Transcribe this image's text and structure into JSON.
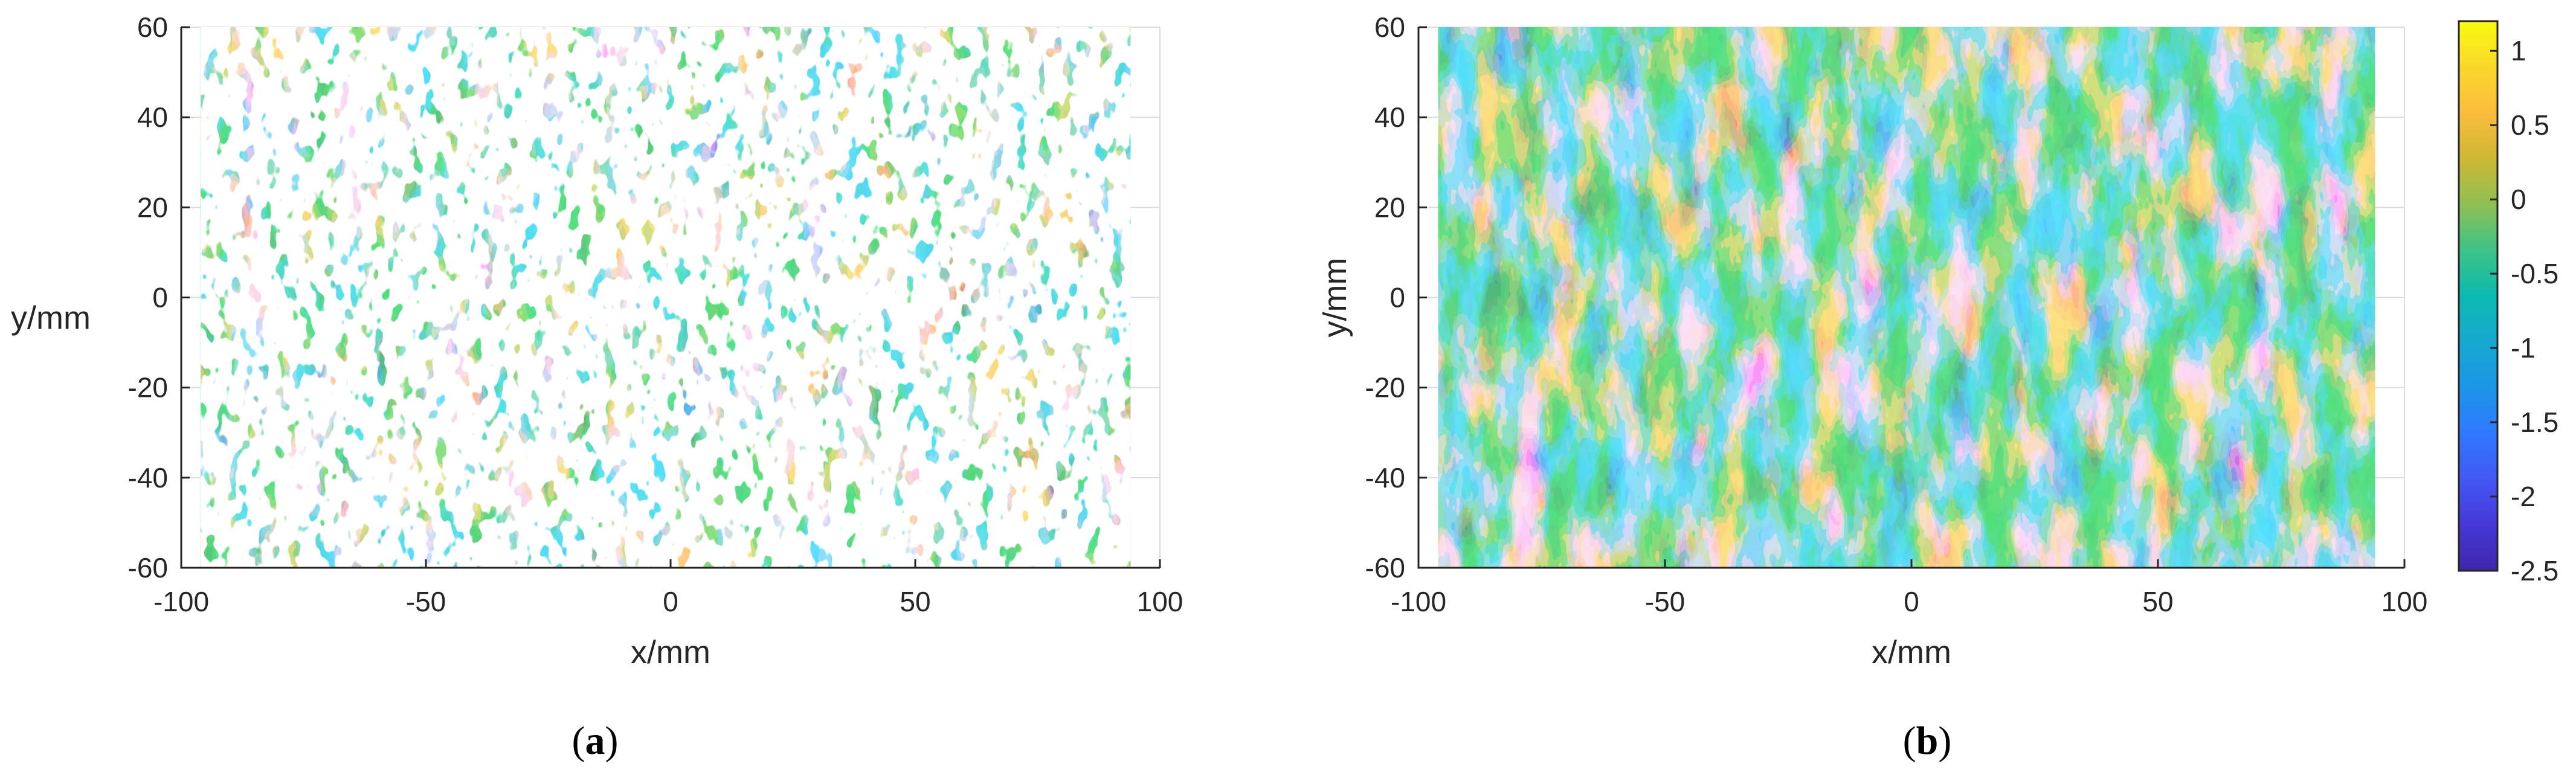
{
  "chart_data": [
    {
      "type": "heatmap",
      "panel_label": "a",
      "title": "",
      "xlabel": "x/mm",
      "ylabel": "y/mm",
      "xlim": [
        -100,
        100
      ],
      "ylim": [
        -60,
        60
      ],
      "x_ticks": [
        -100,
        -50,
        0,
        50,
        100
      ],
      "y_ticks": [
        60,
        40,
        20,
        0,
        -20,
        -40,
        -60
      ],
      "data_extent": {
        "x": [
          -96,
          94
        ],
        "y": [
          -60,
          60
        ]
      },
      "has_missing_data_holes": true,
      "grid": true,
      "colormap": "parula"
    },
    {
      "type": "heatmap",
      "panel_label": "b",
      "title": "",
      "xlabel": "x/mm",
      "ylabel": "y/mm",
      "xlim": [
        -100,
        100
      ],
      "ylim": [
        -60,
        60
      ],
      "x_ticks": [
        -100,
        -50,
        0,
        50,
        100
      ],
      "y_ticks": [
        60,
        40,
        20,
        0,
        -20,
        -40,
        -60
      ],
      "data_extent": {
        "x": [
          -96,
          94
        ],
        "y": [
          -60,
          60
        ]
      },
      "has_missing_data_holes": false,
      "grid": true,
      "colormap": "parula"
    }
  ],
  "colorbar": {
    "range": [
      -2.5,
      1.2
    ],
    "ticks": [
      1,
      0.5,
      0,
      -0.5,
      -1,
      -1.5,
      -2,
      -2.5
    ],
    "tick_labels": [
      "1",
      "0.5",
      "0",
      "-0.5",
      "-1",
      "-1.5",
      "-2",
      "-2.5"
    ],
    "colors": [
      "#3e26a8",
      "#4538d7",
      "#4258f2",
      "#2f79ff",
      "#1b96e7",
      "#17a9d0",
      "#0bbab0",
      "#3dc387",
      "#8fc053",
      "#cdb833",
      "#fbbc3c",
      "#f9d82b",
      "#f9fb0e"
    ]
  }
}
